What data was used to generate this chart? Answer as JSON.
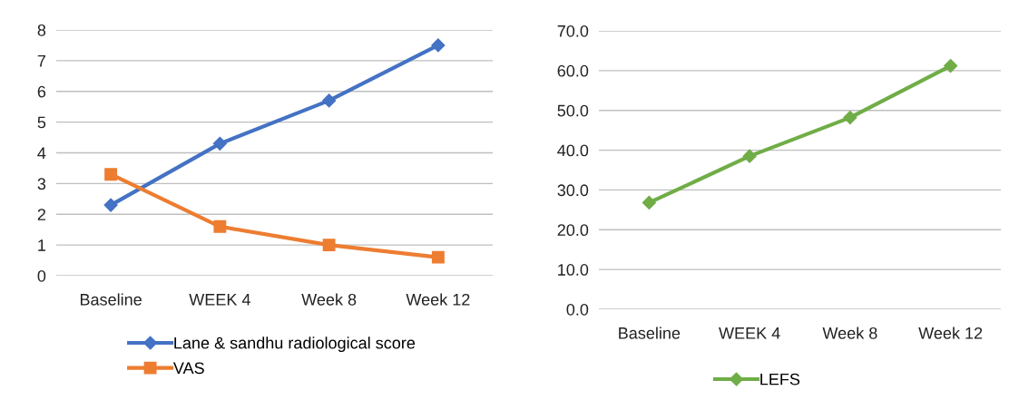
{
  "chart_data": [
    {
      "type": "line",
      "categories": [
        "Baseline",
        "WEEK 4",
        "Week 8",
        "Week 12"
      ],
      "series": [
        {
          "name": "Lane & sandhu radiological score",
          "color": "#4472c4",
          "marker": "diamond",
          "values": [
            2.3,
            4.3,
            5.7,
            7.5
          ]
        },
        {
          "name": "VAS",
          "color": "#ed7d31",
          "marker": "square",
          "values": [
            3.3,
            1.6,
            1.0,
            0.6
          ]
        }
      ],
      "ylim": [
        0,
        8
      ],
      "yticks": [
        0,
        1,
        2,
        3,
        4,
        5,
        6,
        7,
        8
      ],
      "grid": "y",
      "legend": "bottom",
      "line_style": "solid"
    },
    {
      "type": "line",
      "categories": [
        "Baseline",
        "WEEK 4",
        "Week 8",
        "Week 12"
      ],
      "series": [
        {
          "name": "LEFS",
          "color": "#70ad47",
          "marker": "diamond",
          "values": [
            26.8,
            38.5,
            48.2,
            61.2
          ]
        }
      ],
      "ylim": [
        0,
        70
      ],
      "yticks": [
        {
          "value": 0,
          "label": "0.0"
        },
        {
          "value": 10,
          "label": "10.0"
        },
        {
          "value": 20,
          "label": "20.0"
        },
        {
          "value": 30,
          "label": "30.0"
        },
        {
          "value": 40,
          "label": "40.0"
        },
        {
          "value": 50,
          "label": "50.0"
        },
        {
          "value": 60,
          "label": "60.0"
        },
        {
          "value": 70,
          "label": "70.0"
        }
      ],
      "grid": "y",
      "legend": "bottom",
      "line_style": "solid"
    }
  ]
}
